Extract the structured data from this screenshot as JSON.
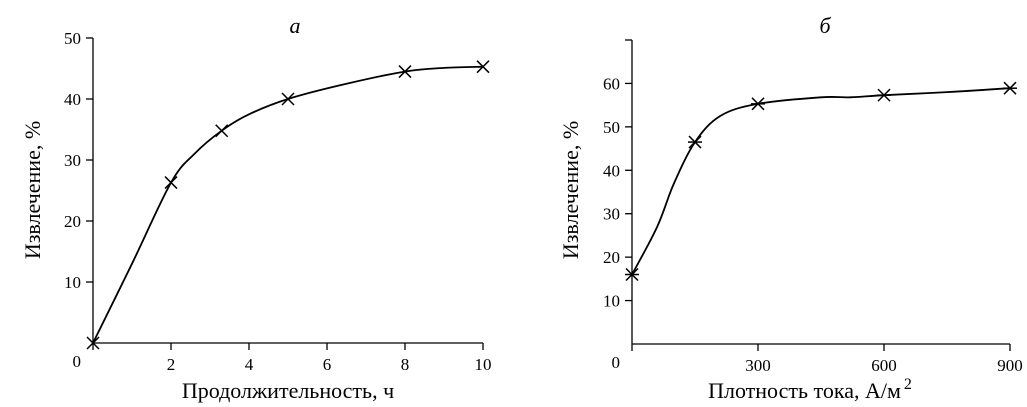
{
  "chart_data": [
    {
      "type": "line",
      "title": "а",
      "xlabel": "Продолжительность, ч",
      "ylabel": "Извлечение, %",
      "xlim": [
        0,
        10
      ],
      "ylim": [
        0,
        50
      ],
      "x_ticks": [
        0,
        2,
        4,
        6,
        8,
        10
      ],
      "y_ticks": [
        10,
        20,
        30,
        40,
        50
      ],
      "x_tick_labels": [
        "2",
        "4",
        "6",
        "8",
        "10"
      ],
      "y_tick_labels": [
        "10",
        "20",
        "30",
        "40",
        "50"
      ],
      "origin_label": "0",
      "marker": "x",
      "series": [
        {
          "x": [
            0,
            2,
            3.3,
            5,
            8,
            10
          ],
          "y": [
            0,
            26.3,
            34.8,
            40,
            44.5,
            45.3
          ]
        }
      ],
      "curve": [
        [
          0,
          0
        ],
        [
          1,
          13
        ],
        [
          2,
          26.3
        ],
        [
          2.6,
          31
        ],
        [
          3.3,
          34.8
        ],
        [
          4,
          37.5
        ],
        [
          5,
          40
        ],
        [
          6.5,
          42.5
        ],
        [
          8,
          44.5
        ],
        [
          9,
          45.1
        ],
        [
          10,
          45.3
        ]
      ]
    },
    {
      "type": "line",
      "title": "б",
      "xlabel": "Плотность тока, А/м",
      "xlabel_sup": "2",
      "ylabel": "Извлечение, %",
      "xlim": [
        0,
        900
      ],
      "ylim": [
        0,
        70
      ],
      "x_ticks": [
        0,
        300,
        600,
        900
      ],
      "y_ticks": [
        10,
        20,
        30,
        40,
        50,
        60,
        70
      ],
      "x_tick_labels": [
        "300",
        "600",
        "900"
      ],
      "y_tick_labels": [
        "10",
        "20",
        "30",
        "40",
        "50",
        "60"
      ],
      "origin_label": "0",
      "marker": "asterisk",
      "series": [
        {
          "x": [
            0,
            150,
            300,
            600,
            900
          ],
          "y": [
            16,
            46.5,
            55.3,
            57.3,
            58.9
          ]
        }
      ],
      "curve": [
        [
          0,
          16
        ],
        [
          60,
          27
        ],
        [
          100,
          37
        ],
        [
          150,
          46.5
        ],
        [
          210,
          52.5
        ],
        [
          300,
          55.3
        ],
        [
          450,
          56.8
        ],
        [
          520,
          56.8
        ],
        [
          600,
          57.3
        ],
        [
          750,
          58
        ],
        [
          900,
          58.9
        ]
      ]
    }
  ]
}
